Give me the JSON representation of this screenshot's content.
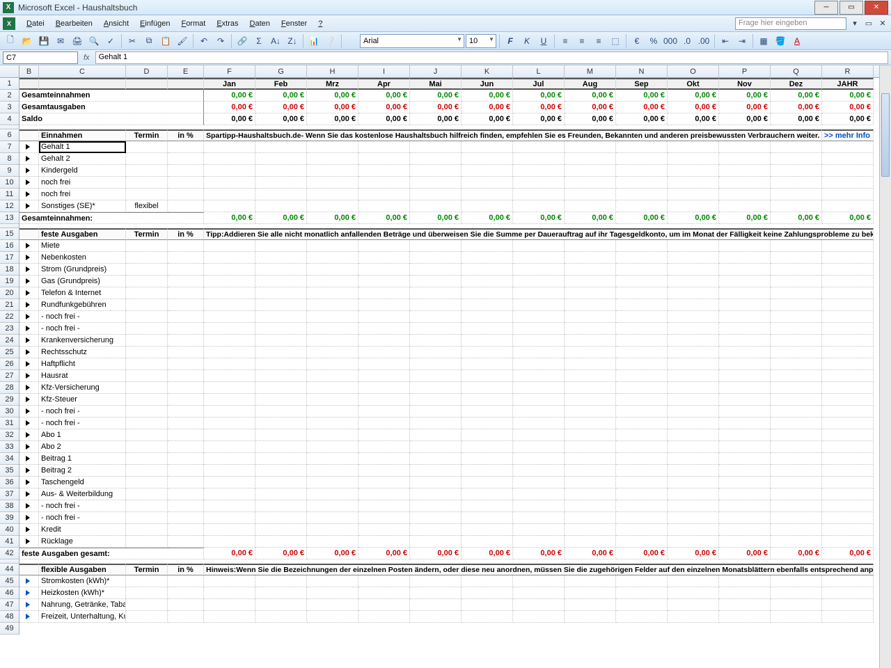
{
  "title": "Microsoft Excel - Haushaltsbuch",
  "menus": [
    "Datei",
    "Bearbeiten",
    "Ansicht",
    "Einfügen",
    "Format",
    "Extras",
    "Daten",
    "Fenster",
    "?"
  ],
  "helpPlaceholder": "Frage hier eingeben",
  "font": {
    "name": "Arial",
    "size": "10"
  },
  "nameBox": "C7",
  "formula": "Gehalt 1",
  "colWidths": {
    "B": 28,
    "C": 125,
    "D": 60,
    "E": 52,
    "month": 74,
    "year": 74
  },
  "colLetters": [
    "B",
    "C",
    "D",
    "E",
    "F",
    "G",
    "H",
    "I",
    "J",
    "K",
    "L",
    "M",
    "N",
    "O",
    "P",
    "Q",
    "R"
  ],
  "months": [
    "Jan",
    "Feb",
    "Mrz",
    "Apr",
    "Mai",
    "Jun",
    "Jul",
    "Aug",
    "Sep",
    "Okt",
    "Nov",
    "Dez",
    "JAHR"
  ],
  "zero": "0,00 €",
  "colors": {
    "green": "#008800",
    "red": "#cc0000",
    "black": "#000000",
    "blue": "#0050c8"
  },
  "summary": [
    {
      "label": "Gesamteinnahmen",
      "color": "green"
    },
    {
      "label": "Gesamtausgaben",
      "color": "red"
    },
    {
      "label": "Saldo",
      "color": "black"
    }
  ],
  "einnahmenHeader": {
    "label": "Einnahmen",
    "termin": "Termin",
    "pct": "in %"
  },
  "einnahmenNote": {
    "bold": "Spartipp-Haushaltsbuch.de",
    "text": " - Wenn Sie das kostenlose Haushaltsbuch hilfreich finden, empfehlen Sie es Freunden, Bekannten und anderen preisbewussten Verbrauchern weiter.",
    "link": ">> mehr Info"
  },
  "einnahmen": [
    {
      "label": "Gehalt 1"
    },
    {
      "label": "Gehalt 2"
    },
    {
      "label": "Kindergeld"
    },
    {
      "label": "noch frei"
    },
    {
      "label": "noch frei"
    },
    {
      "label": "Sonstiges (SE)*",
      "termin": "flexibel"
    }
  ],
  "einnahmenTotal": "Gesamteinnahmen:",
  "festHeader": {
    "label": "feste Ausgaben",
    "termin": "Termin",
    "pct": "in %"
  },
  "festNote": {
    "bold": "Tipp:",
    "text": " Addieren Sie alle nicht monatlich anfallenden Beträge und überweisen Sie die Summe per Dauerauftrag auf ihr Tagesgeldkonto, um im Monat der Fälligkeit keine Zahlungsprobleme zu bekommen."
  },
  "fest": [
    "Miete",
    "Nebenkosten",
    "Strom (Grundpreis)",
    "Gas (Grundpreis)",
    "Telefon & Internet",
    "Rundfunkgebühren",
    " - noch frei -",
    " - noch frei -",
    "Krankenversicherung",
    "Rechtsschutz",
    "Haftpflicht",
    "Hausrat",
    "Kfz-Versicherung",
    "Kfz-Steuer",
    " - noch frei -",
    " - noch frei -",
    "Abo 1",
    "Abo 2",
    "Beitrag 1",
    "Beitrag 2",
    "Taschengeld",
    "Aus- & Weiterbildung",
    " - noch frei -",
    " - noch frei -",
    "Kredit",
    "Rücklage"
  ],
  "festTotal": "feste Ausgaben gesamt:",
  "flexHeader": {
    "label": "flexible Ausgaben",
    "termin": "Termin",
    "pct": "in %"
  },
  "flexNote": {
    "bold": "Hinweis:",
    "text": " Wenn Sie die Bezeichnungen der einzelnen Posten ändern, oder diese neu anordnen, müssen Sie die zugehörigen Felder auf den einzelnen Monatsblättern ebenfalls entsprechend anpassen"
  },
  "flex": [
    "Stromkosten (kWh)*",
    "Heizkosten (kWh)*",
    "Nahrung, Getränke, Tabak (VP)",
    "Freizeit, Unterhaltung, Kultur (U)"
  ],
  "rowNums": [
    1,
    2,
    3,
    4,
    "s",
    6,
    7,
    8,
    9,
    10,
    11,
    12,
    13,
    "s",
    15,
    16,
    17,
    18,
    19,
    20,
    21,
    22,
    23,
    24,
    25,
    26,
    27,
    28,
    29,
    30,
    31,
    32,
    33,
    34,
    35,
    36,
    37,
    38,
    39,
    40,
    41,
    42,
    "s",
    44,
    45,
    46,
    47,
    48,
    49
  ]
}
